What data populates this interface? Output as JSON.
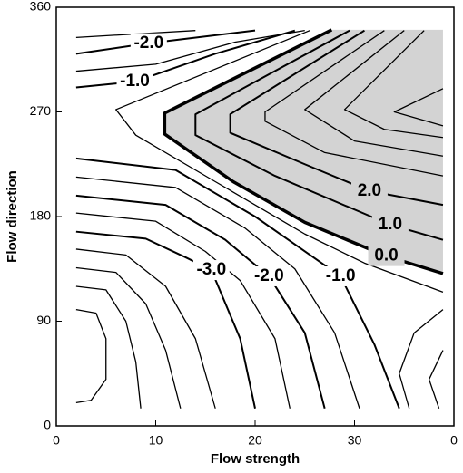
{
  "chart_data": {
    "type": "contour",
    "xlabel": "Flow strength",
    "ylabel": "Flow direction",
    "xlim": [
      0,
      40
    ],
    "ylim": [
      0,
      360
    ],
    "xticks": [
      0,
      10,
      20,
      30,
      {
        "value": 40,
        "label": "0"
      }
    ],
    "yticks": [
      0,
      90,
      180,
      270,
      360
    ],
    "shade_color": "#d3d3d3",
    "contours": [
      {
        "label": "-2.0",
        "x": [
          2,
          9.3,
          20
        ],
        "y": [
          320,
          329,
          340
        ]
      },
      {
        "x": [
          2,
          8,
          14
        ],
        "y": [
          334,
          337,
          340
        ]
      },
      {
        "label": "-1.0",
        "x": [
          2,
          7.9,
          16,
          24
        ],
        "y": [
          291,
          296,
          320,
          340
        ]
      },
      {
        "x": [
          2,
          10,
          18,
          25
        ],
        "y": [
          305,
          311,
          330,
          340
        ]
      },
      {
        "x": [
          25.5,
          6,
          8,
          16,
          25,
          31,
          38.9
        ],
        "y": [
          340,
          272,
          250,
          210,
          165,
          140,
          115
        ]
      },
      {
        "label": "0.0",
        "shaded": true,
        "x": [
          27.7,
          10.9,
          10.9,
          17.8,
          25,
          33.2,
          38.9
        ],
        "y": [
          340.6,
          269,
          251,
          210,
          175,
          146,
          131
        ]
      },
      {
        "label": "1.0",
        "x": [
          29.5,
          14,
          14,
          22,
          33.6,
          38.9
        ],
        "y": [
          340,
          268,
          250,
          215,
          173,
          160
        ]
      },
      {
        "label": "2.0",
        "x": [
          31,
          17.5,
          17.5,
          25,
          31.5,
          38.9
        ],
        "y": [
          340,
          268,
          252,
          225,
          202,
          190
        ]
      },
      {
        "x": [
          33,
          21,
          21,
          27,
          38.9
        ],
        "y": [
          340,
          270,
          262,
          235,
          215
        ]
      },
      {
        "x": [
          35,
          25,
          30,
          38.9
        ],
        "y": [
          340,
          272,
          245,
          232
        ]
      },
      {
        "x": [
          37,
          29,
          33,
          38.9
        ],
        "y": [
          340,
          272,
          255,
          248
        ]
      },
      {
        "x": [
          38.9,
          34,
          38.9
        ],
        "y": [
          290,
          270,
          258
        ]
      },
      {
        "label": "-1.0",
        "x": [
          2,
          12,
          20,
          28.6,
          32,
          34.5
        ],
        "y": [
          230,
          220,
          180,
          128.6,
          70,
          15
        ]
      },
      {
        "x": [
          2,
          12,
          19,
          24,
          28,
          30.5
        ],
        "y": [
          214,
          205,
          170,
          135,
          80,
          15
        ]
      },
      {
        "label": "-2.0",
        "x": [
          2,
          11,
          17,
          21.4,
          25,
          27
        ],
        "y": [
          198,
          190,
          160,
          128.6,
          80,
          15
        ]
      },
      {
        "x": [
          2,
          10,
          15,
          18.5,
          22,
          23.5
        ],
        "y": [
          183,
          176,
          150,
          125,
          75,
          15
        ]
      },
      {
        "label": "-3.0",
        "x": [
          2,
          9,
          13,
          15.6,
          18.5,
          20
        ],
        "y": [
          167,
          161,
          145,
          134,
          75,
          15
        ]
      },
      {
        "x": [
          2,
          7,
          11,
          14,
          16
        ],
        "y": [
          152,
          147,
          120,
          75,
          15
        ]
      },
      {
        "x": [
          2,
          6,
          9,
          11,
          12.5
        ],
        "y": [
          136,
          132,
          105,
          65,
          15
        ]
      },
      {
        "x": [
          2,
          5,
          7,
          8,
          8.5
        ],
        "y": [
          120,
          117,
          90,
          55,
          15
        ]
      },
      {
        "x": [
          2,
          4,
          5,
          5,
          3.5,
          2
        ],
        "y": [
          100,
          97,
          75,
          40,
          22,
          20
        ]
      },
      {
        "x": [
          38.9,
          36,
          34.5,
          35.5
        ],
        "y": [
          100,
          80,
          45,
          15
        ]
      },
      {
        "x": [
          38.9,
          37.5,
          38.5
        ],
        "y": [
          65,
          40,
          15
        ]
      }
    ]
  }
}
